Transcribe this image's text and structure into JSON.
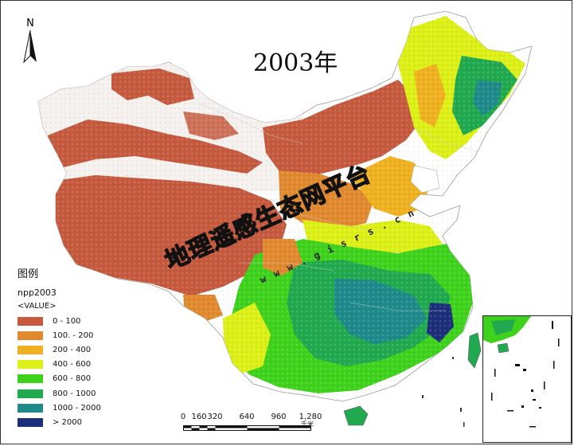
{
  "map": {
    "title": "2003年",
    "north_label": "N"
  },
  "legend": {
    "title": "图例",
    "layer": "npp2003",
    "field": "<VALUE>",
    "items": [
      {
        "label": "0 - 100",
        "color": "#c55a3e"
      },
      {
        "label": "100. - 200",
        "color": "#e0892f"
      },
      {
        "label": "200 - 400",
        "color": "#efb120"
      },
      {
        "label": "400 - 600",
        "color": "#dcef16"
      },
      {
        "label": "600 - 800",
        "color": "#3fd21d"
      },
      {
        "label": "800 - 1000",
        "color": "#21a94f"
      },
      {
        "label": "1000 - 2000",
        "color": "#1e8a8a"
      },
      {
        "label": "> 2000",
        "color": "#1d2f7a"
      }
    ]
  },
  "scale": {
    "ticks": [
      "0",
      "160",
      "320",
      "640",
      "960",
      "1,280"
    ],
    "unit": "千米"
  },
  "watermark": {
    "text": "地理遥感生态网平台",
    "url": "w w w . g i s r s . c n"
  }
}
